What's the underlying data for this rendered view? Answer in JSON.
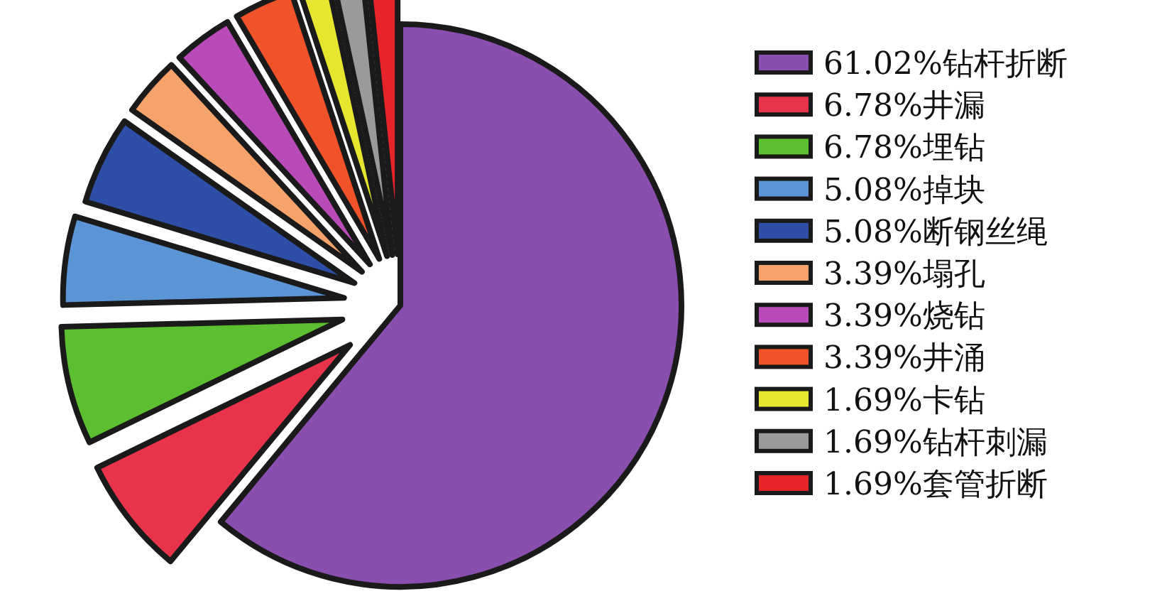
{
  "chart_data": {
    "type": "pie",
    "categories": [
      "61.02%钻杆折断",
      "6.78%井漏",
      "6.78%埋钻",
      "5.08%掉块",
      "5.08%断钢丝绳",
      "3.39%塌孔",
      "3.39%烧钻",
      "3.39%井涌",
      "1.69%卡钻",
      "1.69%钻杆刺漏",
      "1.69%套管折断"
    ],
    "values": [
      61.02,
      6.78,
      6.78,
      5.08,
      5.08,
      3.39,
      3.39,
      3.39,
      1.69,
      1.69,
      1.69
    ],
    "colors": [
      "#8a4fae",
      "#e8334a",
      "#5cbf2f",
      "#5b95d6",
      "#2e4fa8",
      "#f5a26b",
      "#b84bb8",
      "#f0522a",
      "#e6e62e",
      "#9a9a9a",
      "#e8242b"
    ],
    "legend": "right"
  }
}
